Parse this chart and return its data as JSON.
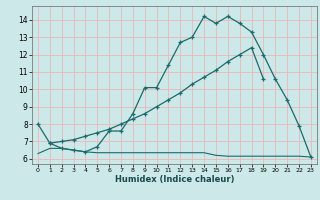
{
  "title": "",
  "xlabel": "Humidex (Indice chaleur)",
  "bg_color": "#cce8e8",
  "grid_color": "#e8b8b8",
  "line_color": "#1a6b6b",
  "xlim": [
    -0.5,
    23.5
  ],
  "ylim": [
    5.7,
    14.8
  ],
  "xticks": [
    0,
    1,
    2,
    3,
    4,
    5,
    6,
    7,
    8,
    9,
    10,
    11,
    12,
    13,
    14,
    15,
    16,
    17,
    18,
    19,
    20,
    21,
    22,
    23
  ],
  "yticks": [
    6,
    7,
    8,
    9,
    10,
    11,
    12,
    13,
    14
  ],
  "line1_x": [
    0,
    1,
    2,
    3,
    4,
    5,
    6,
    7,
    8,
    9,
    10,
    11,
    12,
    13,
    14,
    15,
    16,
    17,
    18,
    19,
    20,
    21,
    22,
    23
  ],
  "line1_y": [
    8.0,
    6.9,
    6.6,
    6.5,
    6.4,
    6.7,
    7.6,
    7.6,
    8.6,
    10.1,
    10.1,
    11.4,
    12.7,
    13.0,
    14.2,
    13.8,
    14.2,
    13.8,
    13.3,
    12.0,
    10.6,
    9.4,
    7.9,
    6.1
  ],
  "line2_x": [
    1,
    2,
    3,
    4,
    5,
    6,
    7,
    8,
    9,
    10,
    11,
    12,
    13,
    14,
    15,
    16,
    17,
    18,
    19
  ],
  "line2_y": [
    6.9,
    7.0,
    7.1,
    7.3,
    7.5,
    7.7,
    8.0,
    8.3,
    8.6,
    9.0,
    9.4,
    9.8,
    10.3,
    10.7,
    11.1,
    11.6,
    12.0,
    12.4,
    10.6
  ],
  "line3_x": [
    0,
    1,
    2,
    3,
    4,
    5,
    6,
    7,
    8,
    9,
    10,
    11,
    12,
    13,
    14,
    15,
    16,
    17,
    18,
    19,
    20,
    21,
    22,
    23
  ],
  "line3_y": [
    6.3,
    6.6,
    6.6,
    6.5,
    6.4,
    6.35,
    6.35,
    6.35,
    6.35,
    6.35,
    6.35,
    6.35,
    6.35,
    6.35,
    6.35,
    6.2,
    6.15,
    6.15,
    6.15,
    6.15,
    6.15,
    6.15,
    6.15,
    6.1
  ]
}
